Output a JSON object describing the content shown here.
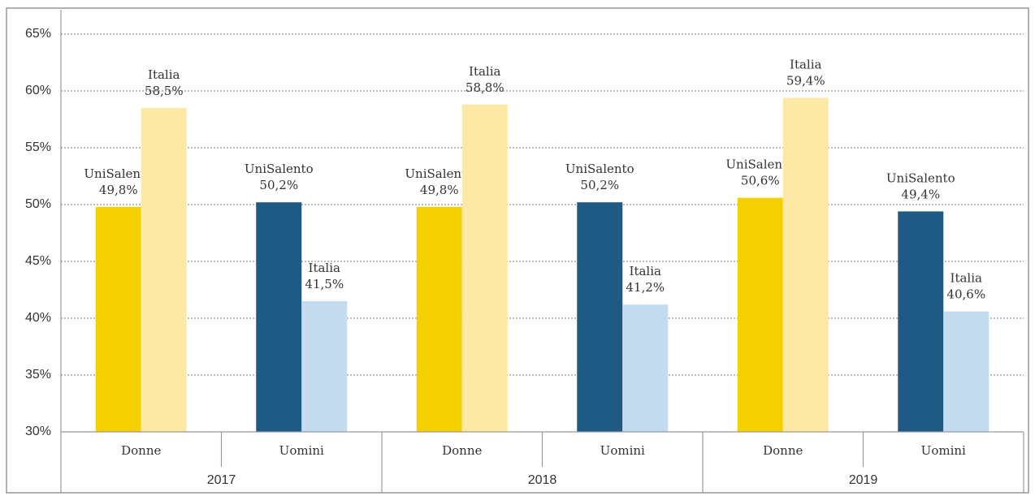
{
  "chart_data": {
    "type": "bar",
    "categories": [
      "Donne",
      "Uomini",
      "Donne",
      "Uomini",
      "Donne",
      "Uomini"
    ],
    "groups": [
      "2017",
      "2018",
      "2019"
    ],
    "series": [
      {
        "name": "UniSalento",
        "colors": [
          "#f5d000",
          "#1f5a85",
          "#f5d000",
          "#1f5a85",
          "#f5d000",
          "#1f5a85"
        ],
        "values": [
          49.8,
          50.2,
          49.8,
          50.2,
          50.6,
          49.4
        ],
        "value_labels": [
          "49,8%",
          "50,2%",
          "49,8%",
          "50,2%",
          "50,6%",
          "49,4%"
        ]
      },
      {
        "name": "Italia",
        "colors": [
          "#fde9a6",
          "#c5dcf0",
          "#fde9a6",
          "#c5dcf0",
          "#fde9a6",
          "#c5dcf0"
        ],
        "values": [
          58.5,
          41.5,
          58.8,
          41.2,
          59.4,
          40.6
        ],
        "value_labels": [
          "58,5%",
          "41,5%",
          "58,8%",
          "41,2%",
          "59,4%",
          "40,6%"
        ]
      }
    ],
    "ylim": [
      30,
      65
    ],
    "yticks": [
      {
        "value": 30,
        "label": "30%"
      },
      {
        "value": 35,
        "label": "35%"
      },
      {
        "value": 40,
        "label": "40%"
      },
      {
        "value": 45,
        "label": "45%"
      },
      {
        "value": 50,
        "label": "50%"
      },
      {
        "value": 55,
        "label": "55%"
      },
      {
        "value": 60,
        "label": "60%"
      },
      {
        "value": 65,
        "label": "65%"
      }
    ],
    "grid": true
  }
}
